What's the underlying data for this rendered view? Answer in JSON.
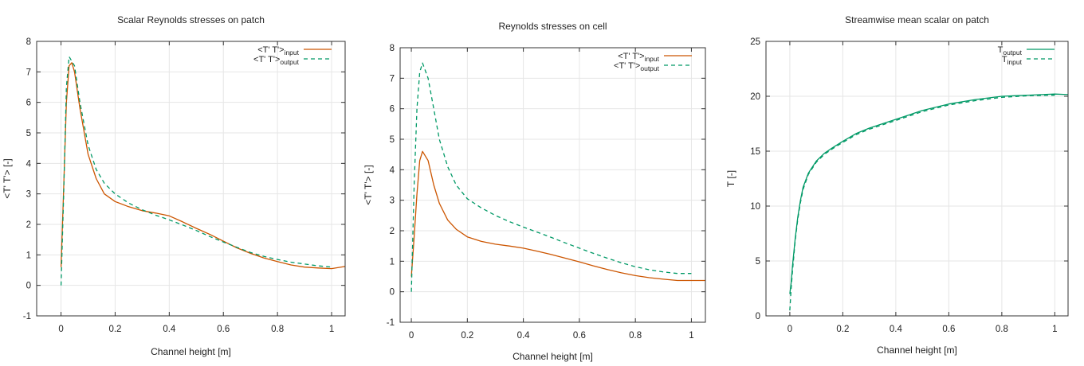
{
  "chart_data": [
    {
      "type": "line",
      "title": "Scalar Reynolds stresses on patch",
      "xlabel": "Channel height [m]",
      "ylabel": "<T' T'> [-]",
      "xlim": [
        -0.09,
        1.05
      ],
      "ylim": [
        -1,
        8
      ],
      "xticks": [
        0,
        0.2,
        0.4,
        0.6,
        0.8,
        1
      ],
      "xtick_labels": [
        "0",
        "0.2",
        "0.4",
        "0.6",
        "0.8",
        "1"
      ],
      "yticks": [
        -1,
        0,
        1,
        2,
        3,
        4,
        5,
        6,
        7,
        8
      ],
      "ytick_labels": [
        "-1",
        "0",
        "1",
        "2",
        "3",
        "4",
        "5",
        "6",
        "7",
        "8"
      ],
      "grid": true,
      "legend": "top-right",
      "series": [
        {
          "name": "<T' T'>",
          "name_sub": "input",
          "color": "#cc5500",
          "style": "solid",
          "x": [
            0,
            0.01,
            0.02,
            0.03,
            0.04,
            0.05,
            0.07,
            0.1,
            0.13,
            0.16,
            0.2,
            0.25,
            0.3,
            0.35,
            0.4,
            0.45,
            0.5,
            0.55,
            0.6,
            0.65,
            0.7,
            0.75,
            0.8,
            0.85,
            0.9,
            0.95,
            1.0,
            1.05
          ],
          "y": [
            0.6,
            3.2,
            6.0,
            7.2,
            7.3,
            7.0,
            5.8,
            4.3,
            3.5,
            3.0,
            2.75,
            2.58,
            2.45,
            2.37,
            2.28,
            2.08,
            1.87,
            1.67,
            1.45,
            1.23,
            1.05,
            0.9,
            0.78,
            0.67,
            0.6,
            0.57,
            0.55,
            0.62
          ]
        },
        {
          "name": "<T' T'>",
          "name_sub": "output",
          "color": "#009966",
          "style": "dashed",
          "x": [
            0,
            0.01,
            0.02,
            0.03,
            0.05,
            0.07,
            0.1,
            0.13,
            0.16,
            0.2,
            0.25,
            0.3,
            0.35,
            0.4,
            0.45,
            0.5,
            0.55,
            0.6,
            0.65,
            0.7,
            0.75,
            0.8,
            0.85,
            0.9,
            0.95,
            1.0
          ],
          "y": [
            0.0,
            3.0,
            6.5,
            7.5,
            7.2,
            6.0,
            4.6,
            3.8,
            3.35,
            3.0,
            2.7,
            2.48,
            2.3,
            2.15,
            1.98,
            1.8,
            1.6,
            1.42,
            1.25,
            1.08,
            0.95,
            0.85,
            0.76,
            0.7,
            0.64,
            0.6
          ]
        }
      ]
    },
    {
      "type": "line",
      "title": "Reynolds stresses on cell",
      "xlabel": "Channel height [m]",
      "ylabel": "<T' T'> [-]",
      "xlim": [
        -0.04,
        1.05
      ],
      "ylim": [
        -1,
        8
      ],
      "xticks": [
        0,
        0.2,
        0.4,
        0.6,
        0.8,
        1
      ],
      "xtick_labels": [
        "0",
        "0.2",
        "0.4",
        "0.6",
        "0.8",
        "1"
      ],
      "yticks": [
        -1,
        0,
        1,
        2,
        3,
        4,
        5,
        6,
        7,
        8
      ],
      "ytick_labels": [
        "-1",
        "0",
        "1",
        "2",
        "3",
        "4",
        "5",
        "6",
        "7",
        "8"
      ],
      "grid": true,
      "legend": "top-right",
      "series": [
        {
          "name": "<T' T'>",
          "name_sub": "input",
          "color": "#cc5500",
          "style": "solid",
          "x": [
            0,
            0.01,
            0.02,
            0.03,
            0.04,
            0.06,
            0.08,
            0.1,
            0.13,
            0.16,
            0.2,
            0.25,
            0.3,
            0.35,
            0.4,
            0.45,
            0.5,
            0.55,
            0.6,
            0.65,
            0.7,
            0.75,
            0.8,
            0.85,
            0.9,
            0.95,
            1.0,
            1.05
          ],
          "y": [
            0.5,
            1.8,
            3.2,
            4.3,
            4.6,
            4.3,
            3.5,
            2.9,
            2.35,
            2.05,
            1.8,
            1.65,
            1.56,
            1.5,
            1.43,
            1.33,
            1.22,
            1.1,
            0.98,
            0.85,
            0.73,
            0.62,
            0.53,
            0.46,
            0.41,
            0.37,
            0.37,
            0.37
          ]
        },
        {
          "name": "<T' T'>",
          "name_sub": "output",
          "color": "#009966",
          "style": "dashed",
          "x": [
            0,
            0.01,
            0.02,
            0.03,
            0.04,
            0.06,
            0.08,
            0.1,
            0.13,
            0.16,
            0.2,
            0.25,
            0.3,
            0.35,
            0.4,
            0.45,
            0.5,
            0.55,
            0.6,
            0.65,
            0.7,
            0.75,
            0.8,
            0.85,
            0.9,
            0.95,
            1.0
          ],
          "y": [
            0.0,
            3.5,
            6.0,
            7.2,
            7.5,
            7.0,
            6.0,
            5.0,
            4.1,
            3.5,
            3.05,
            2.75,
            2.5,
            2.3,
            2.12,
            1.95,
            1.78,
            1.6,
            1.43,
            1.26,
            1.1,
            0.95,
            0.82,
            0.72,
            0.65,
            0.6,
            0.6
          ]
        }
      ]
    },
    {
      "type": "line",
      "title": "Streamwise mean scalar on patch",
      "xlabel": "Channel height [m]",
      "ylabel": "T [-]",
      "xlim": [
        -0.09,
        1.05
      ],
      "ylim": [
        0,
        25
      ],
      "xticks": [
        0,
        0.2,
        0.4,
        0.6,
        0.8,
        1
      ],
      "xtick_labels": [
        "0",
        "0.2",
        "0.4",
        "0.6",
        "0.8",
        "1"
      ],
      "yticks": [
        0,
        5,
        10,
        15,
        20,
        25
      ],
      "ytick_labels": [
        "0",
        "5",
        "10",
        "15",
        "20",
        "25"
      ],
      "grid": true,
      "legend": "top-right",
      "series": [
        {
          "name": "T",
          "name_sub": "output",
          "color": "#009966",
          "style": "solid",
          "x": [
            0,
            0.005,
            0.01,
            0.02,
            0.03,
            0.04,
            0.05,
            0.07,
            0.1,
            0.13,
            0.16,
            0.2,
            0.25,
            0.3,
            0.35,
            0.4,
            0.5,
            0.6,
            0.7,
            0.8,
            0.9,
            1.0,
            1.05
          ],
          "y": [
            2.0,
            3.0,
            4.5,
            7.0,
            9.0,
            10.5,
            11.7,
            13.0,
            14.1,
            14.8,
            15.3,
            15.9,
            16.6,
            17.1,
            17.5,
            17.9,
            18.7,
            19.3,
            19.7,
            20.0,
            20.1,
            20.2,
            20.15
          ]
        },
        {
          "name": "T",
          "name_sub": "input",
          "color": "#009966",
          "style": "dashed",
          "x": [
            0,
            0.005,
            0.01,
            0.02,
            0.03,
            0.04,
            0.05,
            0.07,
            0.1,
            0.13,
            0.16,
            0.2,
            0.25,
            0.3,
            0.35,
            0.4,
            0.5,
            0.6,
            0.7,
            0.8,
            0.9,
            1.0
          ],
          "y": [
            0.5,
            2.5,
            4.0,
            6.8,
            8.8,
            10.3,
            11.5,
            12.9,
            14.0,
            14.7,
            15.2,
            15.8,
            16.5,
            17.0,
            17.4,
            17.8,
            18.6,
            19.2,
            19.6,
            19.9,
            20.05,
            20.1
          ]
        }
      ]
    }
  ]
}
